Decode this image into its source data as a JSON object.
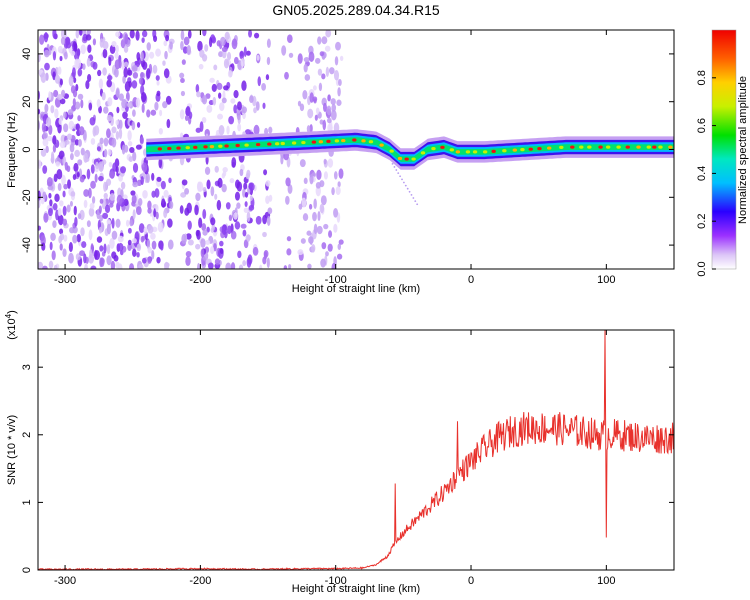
{
  "title": "GN05.2025.289.04.34.R15",
  "chart_data": [
    {
      "type": "heatmap",
      "xlabel": "Height of straight line (km)",
      "ylabel": "Frequency (Hz)",
      "xlim": [
        -320,
        150
      ],
      "ylim": [
        -50,
        50
      ],
      "xticks": [
        -300,
        -200,
        -100,
        0,
        100
      ],
      "xtick_labels": [
        "-300",
        "-200",
        "-100",
        "0",
        "100"
      ],
      "yticks": [
        -40,
        -20,
        0,
        20,
        40
      ],
      "ytick_labels": [
        "-40",
        "-20",
        "0",
        "20",
        "40"
      ],
      "ridge": [
        {
          "x": -240,
          "f": 0
        },
        {
          "x": -200,
          "f": 1
        },
        {
          "x": -160,
          "f": 2
        },
        {
          "x": -120,
          "f": 3
        },
        {
          "x": -85,
          "f": 4
        },
        {
          "x": -70,
          "f": 3
        },
        {
          "x": -60,
          "f": 0
        },
        {
          "x": -52,
          "f": -4
        },
        {
          "x": -42,
          "f": -4
        },
        {
          "x": -32,
          "f": 0
        },
        {
          "x": -20,
          "f": 1
        },
        {
          "x": -10,
          "f": -1
        },
        {
          "x": 10,
          "f": -1
        },
        {
          "x": 40,
          "f": 0
        },
        {
          "x": 70,
          "f": 1
        },
        {
          "x": 100,
          "f": 1
        },
        {
          "x": 150,
          "f": 1
        }
      ],
      "colorbar": {
        "label": "Normalized spectral amplitude",
        "range": [
          0,
          1
        ],
        "ticks": [
          0.0,
          0.2,
          0.4,
          0.6,
          0.8
        ],
        "tick_labels": [
          "0.0",
          "0.2",
          "0.4",
          "0.6",
          "0.8"
        ]
      }
    },
    {
      "type": "line",
      "xlabel": "Height of straight line (km)",
      "ylabel": "SNR (10 * v/v)",
      "exponent_label": "(x10",
      "exponent_power": "4",
      "exponent_close": ")",
      "xlim": [
        -320,
        150
      ],
      "ylim": [
        0,
        3.55
      ],
      "xticks": [
        -300,
        -200,
        -100,
        0,
        100
      ],
      "xtick_labels": [
        "-300",
        "-200",
        "-100",
        "0",
        "100"
      ],
      "yticks": [
        0,
        1,
        2,
        3
      ],
      "ytick_labels": [
        "0",
        "1",
        "2",
        "3"
      ],
      "color": "#e8312c",
      "series": [
        {
          "name": "SNR",
          "x": [
            -320,
            -250,
            -200,
            -160,
            -120,
            -100,
            -80,
            -70,
            -62,
            -56,
            -50,
            -40,
            -30,
            -20,
            -10,
            0,
            10,
            20,
            30,
            40,
            60,
            80,
            95,
            110,
            130,
            150
          ],
          "y": [
            0.01,
            0.01,
            0.02,
            0.01,
            0.02,
            0.02,
            0.03,
            0.08,
            0.2,
            0.4,
            0.55,
            0.75,
            0.95,
            1.15,
            1.4,
            1.6,
            1.8,
            1.95,
            2.05,
            2.1,
            2.1,
            2.05,
            2.0,
            2.0,
            1.95,
            1.95
          ]
        }
      ],
      "spikes": [
        {
          "x": -56,
          "y": 1.28
        },
        {
          "x": -10,
          "y": 2.2
        },
        {
          "x": 99,
          "y": 3.55
        },
        {
          "x": 100,
          "y": 0.48
        }
      ]
    }
  ]
}
